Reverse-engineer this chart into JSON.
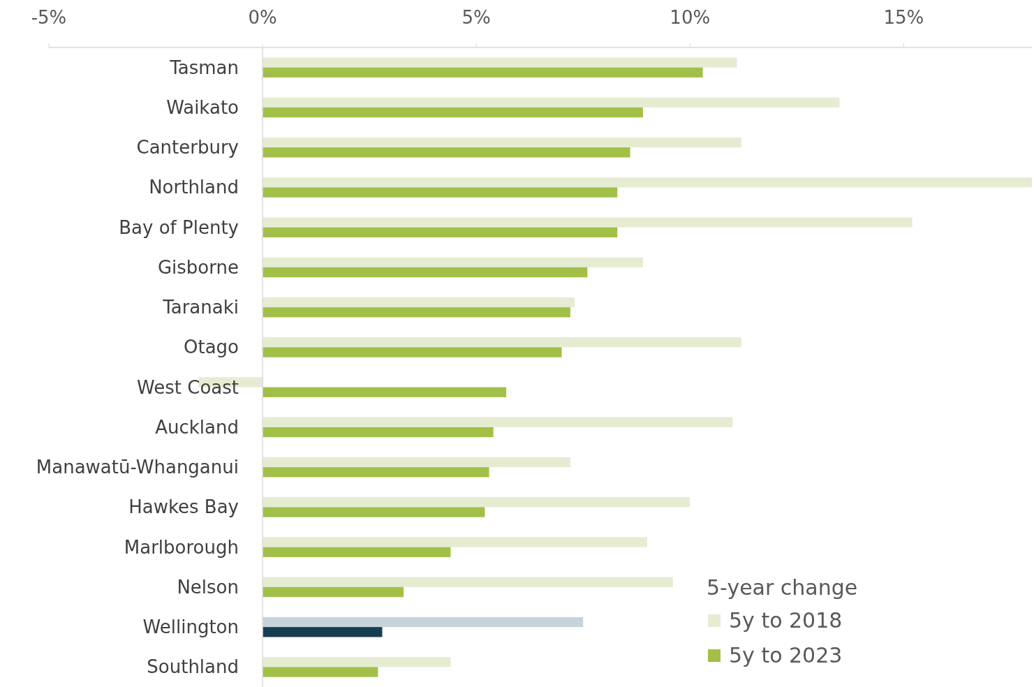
{
  "chart_data": {
    "type": "bar",
    "orientation": "horizontal",
    "categories": [
      "Tasman",
      "Waikato",
      "Canterbury",
      "Northland",
      "Bay of Plenty",
      "Gisborne",
      "Taranaki",
      "Otago",
      "West Coast",
      "Auckland",
      "Manawatū-Whanganui",
      "Hawkes Bay",
      "Marlborough",
      "Nelson",
      "Wellington",
      "Southland"
    ],
    "series": [
      {
        "name": "5y to 2018",
        "color": "#e5ecd2",
        "colors": [
          "#e5ecd2",
          "#e5ecd2",
          "#e5ecd2",
          "#e5ecd2",
          "#e5ecd2",
          "#e5ecd2",
          "#e5ecd2",
          "#e5ecd2",
          "#e5ecd2",
          "#e5ecd2",
          "#e5ecd2",
          "#e5ecd2",
          "#e5ecd2",
          "#e5ecd2",
          "#c6d4d9",
          "#e5ecd2"
        ],
        "values": [
          11.1,
          13.5,
          11.2,
          18.0,
          15.2,
          8.9,
          7.3,
          11.2,
          -1.5,
          11.0,
          7.2,
          10.0,
          9.0,
          9.6,
          7.5,
          4.4
        ]
      },
      {
        "name": "5y to 2023",
        "color": "#a2bf48",
        "colors": [
          "#a2bf48",
          "#a2bf48",
          "#a2bf48",
          "#a2bf48",
          "#a2bf48",
          "#a2bf48",
          "#a2bf48",
          "#a2bf48",
          "#a2bf48",
          "#a2bf48",
          "#a2bf48",
          "#a2bf48",
          "#a2bf48",
          "#a2bf48",
          "#153f51",
          "#a2bf48"
        ],
        "values": [
          10.3,
          8.9,
          8.6,
          8.3,
          8.3,
          7.6,
          7.2,
          7.0,
          5.7,
          5.4,
          5.3,
          5.2,
          4.4,
          3.3,
          2.8,
          2.7
        ]
      }
    ],
    "xlim": [
      -5,
      18
    ],
    "xticks": [
      {
        "value": -5,
        "label": "-5%"
      },
      {
        "value": 0,
        "label": "0%"
      },
      {
        "value": 5,
        "label": "5%"
      },
      {
        "value": 10,
        "label": "10%"
      },
      {
        "value": 15,
        "label": "15%"
      }
    ],
    "legend_title": "5-year change",
    "legend": "bottom right",
    "grid": false
  }
}
